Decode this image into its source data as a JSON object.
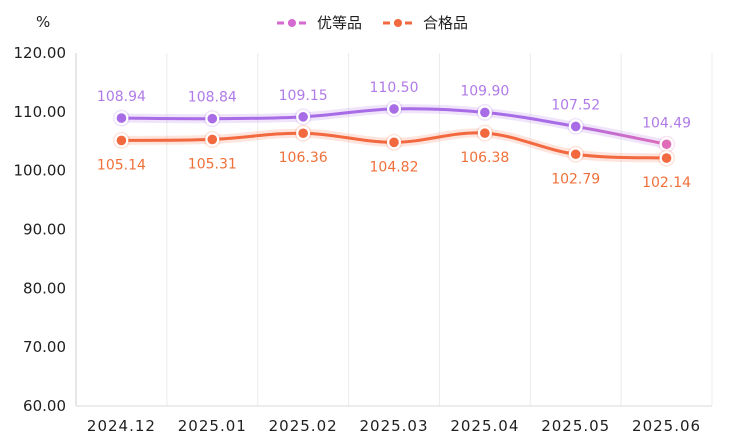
{
  "chart_data": {
    "type": "line",
    "title": "",
    "xlabel": "",
    "ylabel": "%",
    "ylim": [
      60,
      120
    ],
    "yticks": [
      "60.00",
      "70.00",
      "80.00",
      "90.00",
      "100.00",
      "110.00",
      "120.00"
    ],
    "categories": [
      "2024.12",
      "2025.01",
      "2025.02",
      "2025.03",
      "2025.04",
      "2025.05",
      "2025.06"
    ],
    "grid": "vertical",
    "legend_position": "top-center",
    "series": [
      {
        "name": "优等品",
        "values": [
          108.94,
          108.84,
          109.15,
          110.5,
          109.9,
          107.52,
          104.49
        ],
        "labels": [
          "108.94",
          "108.84",
          "109.15",
          "110.50",
          "109.90",
          "107.52",
          "104.49"
        ],
        "color": "#a86ce6",
        "color_end": "#e06cb8",
        "label_color": "#b07be8",
        "label_position": "above"
      },
      {
        "name": "合格品",
        "values": [
          105.14,
          105.31,
          106.36,
          104.82,
          106.38,
          102.79,
          102.14
        ],
        "labels": [
          "105.14",
          "105.31",
          "106.36",
          "104.82",
          "106.38",
          "102.79",
          "102.14"
        ],
        "color": "#f2683f",
        "color_end": "#f2683f",
        "label_color": "#f0703a",
        "label_position": "below"
      }
    ]
  }
}
